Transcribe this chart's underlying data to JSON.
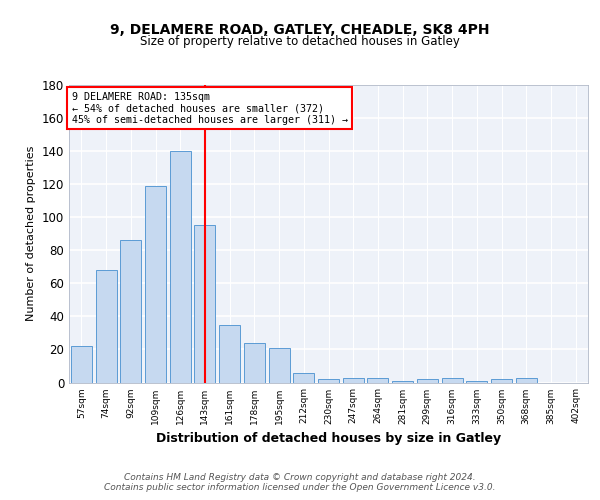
{
  "title1": "9, DELAMERE ROAD, GATLEY, CHEADLE, SK8 4PH",
  "title2": "Size of property relative to detached houses in Gatley",
  "xlabel": "Distribution of detached houses by size in Gatley",
  "ylabel": "Number of detached properties",
  "categories": [
    "57sqm",
    "74sqm",
    "92sqm",
    "109sqm",
    "126sqm",
    "143sqm",
    "161sqm",
    "178sqm",
    "195sqm",
    "212sqm",
    "230sqm",
    "247sqm",
    "264sqm",
    "281sqm",
    "299sqm",
    "316sqm",
    "333sqm",
    "350sqm",
    "368sqm",
    "385sqm",
    "402sqm"
  ],
  "values": [
    22,
    68,
    86,
    119,
    140,
    95,
    35,
    24,
    21,
    6,
    2,
    3,
    3,
    1,
    2,
    3,
    1,
    2,
    3,
    0,
    0
  ],
  "bar_color": "#c6d9f0",
  "bar_edge_color": "#5b9bd5",
  "vline_x": 5,
  "vline_color": "red",
  "annotation_line1": "9 DELAMERE ROAD: 135sqm",
  "annotation_line2": "← 54% of detached houses are smaller (372)",
  "annotation_line3": "45% of semi-detached houses are larger (311) →",
  "annotation_box_color": "white",
  "annotation_box_edge": "red",
  "footer": "Contains HM Land Registry data © Crown copyright and database right 2024.\nContains public sector information licensed under the Open Government Licence v3.0.",
  "ylim": [
    0,
    180
  ],
  "yticks": [
    0,
    20,
    40,
    60,
    80,
    100,
    120,
    140,
    160,
    180
  ],
  "background_color": "#eef2f9"
}
